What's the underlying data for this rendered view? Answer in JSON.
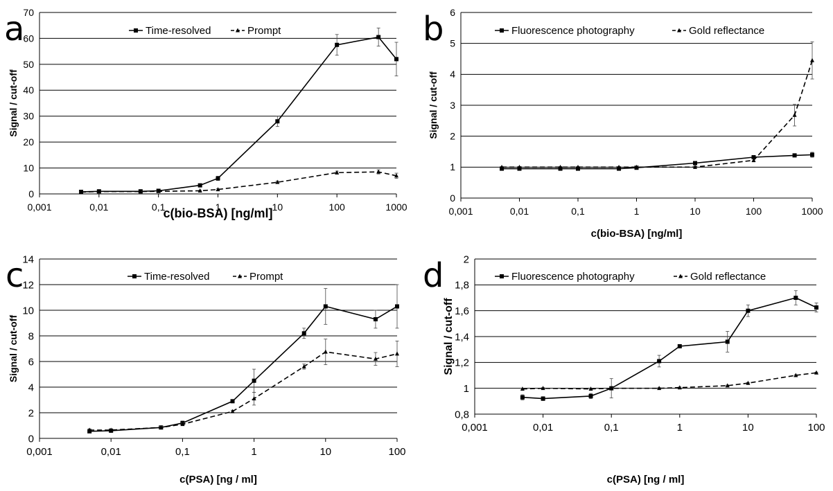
{
  "chart_data": [
    {
      "panel": "a",
      "type": "line",
      "xscale": "log",
      "xlim": [
        0.001,
        1000
      ],
      "ylim": [
        0,
        70
      ],
      "xticks": [
        "0,001",
        "0,01",
        "0,1",
        "1",
        "10",
        "100",
        "1000"
      ],
      "yticks": [
        "0",
        "10",
        "20",
        "30",
        "40",
        "50",
        "60",
        "70"
      ],
      "xlabel": "c(bio-BSA) [ng/ml]",
      "ylabel": "Signal / cut-off",
      "grid": "horizontal",
      "legend": "top",
      "series": [
        {
          "name": "Time-resolved",
          "style": "solid",
          "marker": "square",
          "x": [
            0.005,
            0.01,
            0.05,
            0.1,
            0.5,
            1,
            10,
            100,
            500,
            1000
          ],
          "y": [
            0.8,
            1.0,
            1.0,
            1.2,
            3.3,
            6.0,
            28.0,
            57.5,
            60.5,
            52.0
          ],
          "err": [
            0.2,
            0.2,
            0.2,
            0.3,
            0.5,
            0.8,
            2.0,
            4.0,
            3.5,
            6.5
          ]
        },
        {
          "name": "Prompt",
          "style": "dashed",
          "marker": "triangle",
          "x": [
            0.005,
            0.01,
            0.05,
            0.1,
            0.5,
            1,
            10,
            100,
            500,
            1000
          ],
          "y": [
            0.7,
            0.9,
            0.9,
            1.0,
            1.2,
            1.7,
            4.5,
            8.2,
            8.5,
            7.0
          ],
          "err": [
            0.1,
            0.1,
            0.1,
            0.1,
            0.2,
            0.3,
            0.5,
            0.6,
            0.8,
            1.0
          ]
        }
      ]
    },
    {
      "panel": "b",
      "type": "line",
      "xscale": "log",
      "xlim": [
        0.001,
        1000
      ],
      "ylim": [
        0,
        6
      ],
      "xticks": [
        "0,001",
        "0,01",
        "0,1",
        "1",
        "10",
        "100",
        "1000"
      ],
      "yticks": [
        "0",
        "1",
        "2",
        "3",
        "4",
        "5",
        "6"
      ],
      "xlabel": "c(bio-BSA) [ng/ml]",
      "ylabel": "Signal / cut-off",
      "grid": "horizontal",
      "legend": "top",
      "series": [
        {
          "name": "Fluorescence photography",
          "style": "solid",
          "marker": "square",
          "x": [
            0.005,
            0.01,
            0.05,
            0.1,
            0.5,
            1,
            10,
            100,
            500,
            1000
          ],
          "y": [
            0.95,
            0.95,
            0.95,
            0.95,
            0.95,
            0.98,
            1.13,
            1.32,
            1.38,
            1.4
          ],
          "err": [
            0.03,
            0.03,
            0.03,
            0.03,
            0.03,
            0.03,
            0.04,
            0.05,
            0.05,
            0.08
          ]
        },
        {
          "name": "Gold reflectance",
          "style": "dashed",
          "marker": "triangle",
          "x": [
            0.005,
            0.01,
            0.05,
            0.1,
            0.5,
            1,
            10,
            100,
            500,
            1000
          ],
          "y": [
            1.0,
            1.0,
            1.0,
            1.0,
            1.0,
            1.0,
            1.0,
            1.22,
            2.68,
            4.45
          ],
          "err": [
            0.02,
            0.02,
            0.02,
            0.02,
            0.02,
            0.02,
            0.03,
            0.05,
            0.35,
            0.6
          ]
        }
      ]
    },
    {
      "panel": "c",
      "type": "line",
      "xscale": "log",
      "xlim": [
        0.001,
        100
      ],
      "ylim": [
        0,
        14
      ],
      "xticks": [
        "0,001",
        "0,01",
        "0,1",
        "1",
        "10",
        "100"
      ],
      "yticks": [
        "0",
        "2",
        "4",
        "6",
        "8",
        "10",
        "12",
        "14"
      ],
      "xlabel": "c(PSA) [ng / ml]",
      "ylabel": "Signal / cut-off",
      "grid": "horizontal",
      "legend": "top",
      "series": [
        {
          "name": "Time-resolved",
          "style": "solid",
          "marker": "square",
          "x": [
            0.005,
            0.01,
            0.05,
            0.1,
            0.5,
            1,
            5,
            10,
            50,
            100
          ],
          "y": [
            0.55,
            0.6,
            0.85,
            1.2,
            2.9,
            4.5,
            8.2,
            10.3,
            9.3,
            10.3
          ],
          "err": [
            0.1,
            0.1,
            0.1,
            0.15,
            0.1,
            0.9,
            0.4,
            1.4,
            0.7,
            1.7
          ]
        },
        {
          "name": "Prompt",
          "style": "dashed",
          "marker": "triangle",
          "x": [
            0.005,
            0.01,
            0.05,
            0.1,
            0.5,
            1,
            5,
            10,
            50,
            100
          ],
          "y": [
            0.65,
            0.65,
            0.85,
            1.1,
            2.1,
            3.1,
            5.6,
            6.75,
            6.2,
            6.6
          ],
          "err": [
            0.1,
            0.1,
            0.1,
            0.1,
            0.1,
            0.5,
            0.2,
            1.0,
            0.5,
            1.0
          ]
        }
      ]
    },
    {
      "panel": "d",
      "type": "line",
      "xscale": "log",
      "xlim": [
        0.001,
        100
      ],
      "ylim": [
        0.8,
        2
      ],
      "xticks": [
        "0,001",
        "0,01",
        "0,1",
        "1",
        "10",
        "100"
      ],
      "yticks": [
        "0,8",
        "1",
        "1,2",
        "1,4",
        "1,6",
        "1,8",
        "2"
      ],
      "xlabel": "c(PSA) [ng / ml]",
      "ylabel": "Signal / cut-off",
      "grid": "horizontal",
      "legend": "top",
      "series": [
        {
          "name": "Fluorescence photography",
          "style": "solid",
          "marker": "square",
          "x": [
            0.005,
            0.01,
            0.05,
            0.1,
            0.5,
            1,
            5,
            10,
            50,
            100
          ],
          "y": [
            0.93,
            0.92,
            0.94,
            1.0,
            1.21,
            1.325,
            1.36,
            1.6,
            1.7,
            1.625
          ],
          "err": [
            0.02,
            0.015,
            0.02,
            0.075,
            0.045,
            0.01,
            0.08,
            0.045,
            0.055,
            0.035
          ]
        },
        {
          "name": "Gold reflectance",
          "style": "dashed",
          "marker": "triangle",
          "x": [
            0.005,
            0.01,
            0.05,
            0.1,
            0.5,
            1,
            5,
            10,
            50,
            100
          ],
          "y": [
            0.995,
            1.0,
            0.995,
            1.0,
            1.0,
            1.005,
            1.02,
            1.04,
            1.1,
            1.12
          ],
          "err": [
            0.005,
            0.005,
            0.005,
            0.005,
            0.005,
            0.005,
            0.005,
            0.005,
            0.005,
            0.005
          ]
        }
      ]
    }
  ]
}
